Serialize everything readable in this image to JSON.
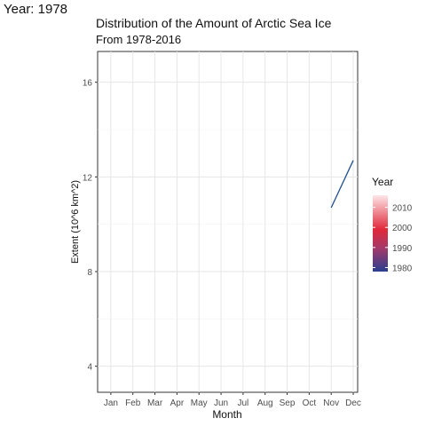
{
  "overlay": {
    "frame_label": "Year: 1978"
  },
  "chart_data": {
    "type": "line",
    "title": "Distribution of the Amount of Arctic Sea Ice",
    "subtitle": "From 1978-2016",
    "xlabel": "Month",
    "ylabel": "Extent (10^6 km^2)",
    "categories": [
      "Jan",
      "Feb",
      "Mar",
      "Apr",
      "May",
      "Jun",
      "Jul",
      "Aug",
      "Sep",
      "Oct",
      "Nov",
      "Dec"
    ],
    "ylim": [
      2.9,
      17.3
    ],
    "yticks": [
      4,
      8,
      12,
      16
    ],
    "grid": true,
    "series": [
      {
        "year": 1978,
        "x": [
          "Nov",
          "Dec"
        ],
        "values": [
          10.7,
          12.7
        ],
        "color": "#1f4e8c"
      }
    ],
    "legend": {
      "title": "Year",
      "position": "right",
      "ticks": [
        2010,
        2000,
        1990,
        1980
      ],
      "range": [
        1978,
        2016
      ],
      "colors": {
        "low": "#2a3f8f",
        "mid": "#e0283a",
        "high": "#fde6e8"
      }
    }
  }
}
